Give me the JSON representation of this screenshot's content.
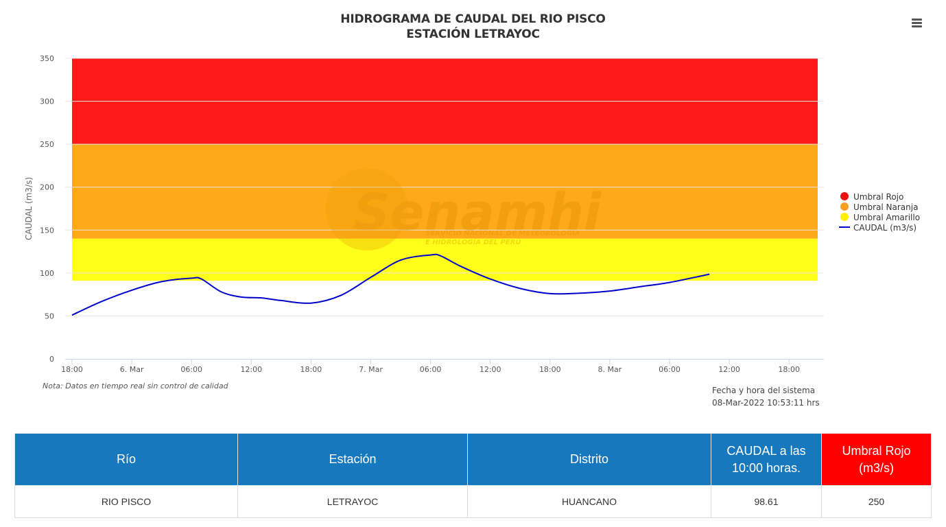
{
  "header": {
    "title": "HIDROGRAMA DE CAUDAL DEL RIO PISCO",
    "subtitle": "ESTACIÓN LETRAYOC",
    "menu_icon": "hamburger-menu-icon"
  },
  "watermark": {
    "logo_text": "Senamhi",
    "line1": "SERVICIO NACIONAL DE METEOROLOGÍA",
    "line2": "E HIDROLOGÍA DEL PERÚ"
  },
  "chart_data": {
    "type": "line",
    "ylabel": "CAUDAL (m3/s)",
    "ylim": [
      0,
      350
    ],
    "yticks": [
      0,
      50,
      100,
      150,
      200,
      250,
      300,
      350
    ],
    "xlim": [
      "2022-03-05 18:00",
      "2022-03-08 21:30"
    ],
    "xticks": [
      {
        "t": "2022-03-05 18:00",
        "label": "18:00"
      },
      {
        "t": "2022-03-06 00:00",
        "label": "6. Mar"
      },
      {
        "t": "2022-03-06 06:00",
        "label": "06:00"
      },
      {
        "t": "2022-03-06 12:00",
        "label": "12:00"
      },
      {
        "t": "2022-03-06 18:00",
        "label": "18:00"
      },
      {
        "t": "2022-03-07 00:00",
        "label": "7. Mar"
      },
      {
        "t": "2022-03-07 06:00",
        "label": "06:00"
      },
      {
        "t": "2022-03-07 12:00",
        "label": "12:00"
      },
      {
        "t": "2022-03-07 18:00",
        "label": "18:00"
      },
      {
        "t": "2022-03-08 00:00",
        "label": "8. Mar"
      },
      {
        "t": "2022-03-08 06:00",
        "label": "06:00"
      },
      {
        "t": "2022-03-08 12:00",
        "label": "12:00"
      },
      {
        "t": "2022-03-08 18:00",
        "label": "18:00"
      }
    ],
    "thresholds": [
      {
        "name": "Umbral Rojo",
        "from": 250,
        "to": 350,
        "color": "#ff1a1a"
      },
      {
        "name": "Umbral Naranja",
        "from": 140,
        "to": 250,
        "color": "#ffa81a"
      },
      {
        "name": "Umbral Amarillo",
        "from": 91,
        "to": 140,
        "color": "#ffff1a"
      }
    ],
    "series": [
      {
        "name": "CAUDAL (m3/s)",
        "color": "#0000cc",
        "x": [
          "2022-03-05 18:00",
          "2022-03-05 21:00",
          "2022-03-06 00:00",
          "2022-03-06 03:00",
          "2022-03-06 06:00",
          "2022-03-06 07:00",
          "2022-03-06 09:00",
          "2022-03-06 11:00",
          "2022-03-06 13:00",
          "2022-03-06 15:00",
          "2022-03-06 18:00",
          "2022-03-06 21:00",
          "2022-03-07 00:00",
          "2022-03-07 03:00",
          "2022-03-07 06:00",
          "2022-03-07 07:00",
          "2022-03-07 09:00",
          "2022-03-07 12:00",
          "2022-03-07 15:00",
          "2022-03-07 18:00",
          "2022-03-07 21:00",
          "2022-03-08 00:00",
          "2022-03-08 03:00",
          "2022-03-08 06:00",
          "2022-03-08 10:00"
        ],
        "values": [
          51,
          67,
          80,
          90,
          94,
          93,
          78,
          72,
          71,
          68,
          65,
          74,
          95,
          115,
          121,
          120,
          108,
          93,
          82,
          76,
          76.5,
          79,
          84,
          89,
          98.61
        ]
      }
    ],
    "legend": {
      "position": "right",
      "items": [
        "Umbral Rojo",
        "Umbral Naranja",
        "Umbral Amarillo",
        "CAUDAL (m3/s)"
      ]
    },
    "grid": true
  },
  "notes": {
    "quality_note": "Nota: Datos en tiempo real sin control de calidad",
    "system_label": "Fecha y hora del sistema",
    "system_time": "08-Mar-2022 10:53:11 hrs"
  },
  "table": {
    "headers": {
      "rio": "Río",
      "estacion": "Estación",
      "distrito": "Distrito",
      "caudal_line1": "CAUDAL a las",
      "caudal_line2": "10:00 horas.",
      "umbral_line1": "Umbral Rojo",
      "umbral_line2": "(m3/s)"
    },
    "row": {
      "rio": "RIO PISCO",
      "estacion": "LETRAYOC",
      "distrito": "HUANCANO",
      "caudal": "98.61",
      "umbral": "250"
    },
    "colors": {
      "header": "#1878be",
      "umbral_header": "#ff0000"
    }
  }
}
